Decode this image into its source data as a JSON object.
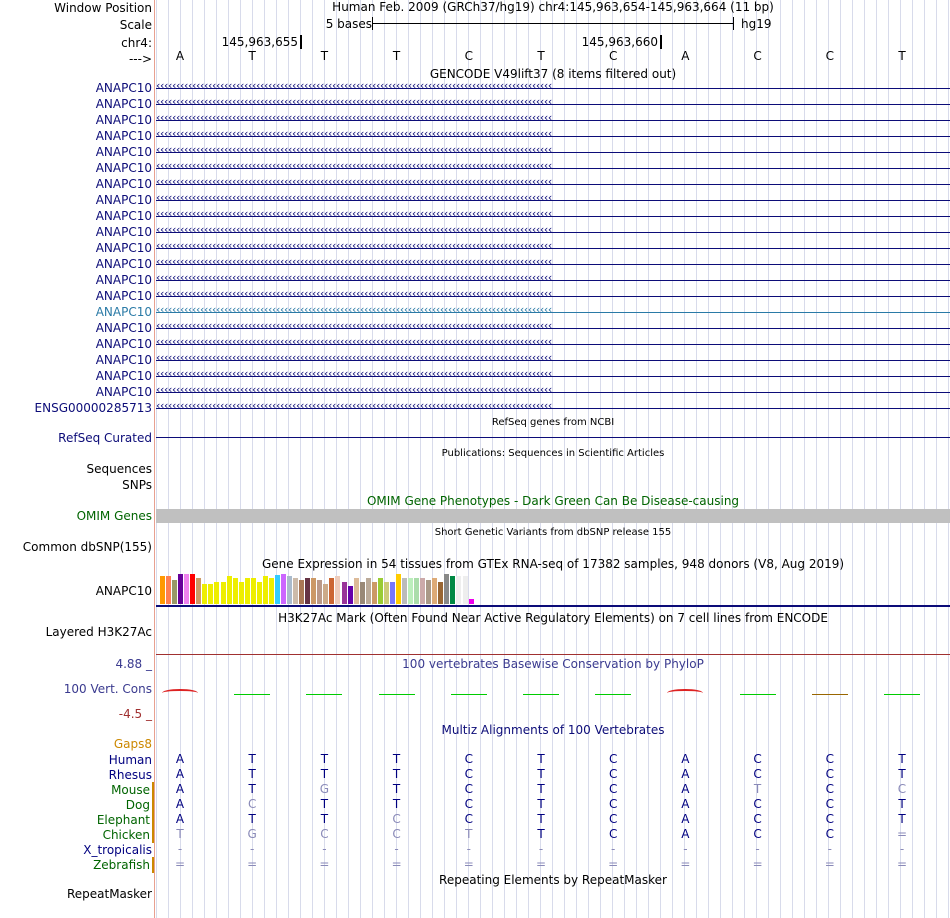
{
  "header": {
    "window_position_label": "Window Position",
    "scale_label": "Scale",
    "chr_label": "chr4:",
    "arrow_label": "--->",
    "assembly_text": "Human Feb. 2009 (GRCh37/hg19)   chr4:145,963,654-145,963,664 (11 bp)",
    "scale_text": "5 bases",
    "db_text": "hg19",
    "pos1": "145,963,655",
    "pos2": "145,963,660"
  },
  "sequence": [
    "A",
    "T",
    "T",
    "T",
    "C",
    "T",
    "C",
    "A",
    "C",
    "C",
    "T"
  ],
  "gencode": {
    "title": "GENCODE V49lift37 (8 items filtered out)",
    "genes": [
      "ANAPC10",
      "ANAPC10",
      "ANAPC10",
      "ANAPC10",
      "ANAPC10",
      "ANAPC10",
      "ANAPC10",
      "ANAPC10",
      "ANAPC10",
      "ANAPC10",
      "ANAPC10",
      "ANAPC10",
      "ANAPC10",
      "ANAPC10",
      "ANAPC10",
      "ANAPC10",
      "ANAPC10",
      "ANAPC10",
      "ANAPC10",
      "ANAPC10",
      "ENSG00000285713"
    ],
    "highlight_index": 14
  },
  "refseq": {
    "title": "RefSeq genes from NCBI",
    "label": "RefSeq Curated"
  },
  "publications": {
    "title": "Publications: Sequences in Scientific Articles",
    "label": "Sequences"
  },
  "snps": {
    "label": "SNPs"
  },
  "omim": {
    "title": "OMIM Gene Phenotypes - Dark Green Can Be Disease-causing",
    "label": "OMIM Genes"
  },
  "dbsnp": {
    "title": "Short Genetic Variants from dbSNP release 155",
    "label": "Common dbSNP(155)"
  },
  "gtex": {
    "title": "Gene Expression in 54 tissues from GTEx RNA-seq of 17382 samples, 948 donors (V8, Aug 2019)",
    "label": "ANAPC10",
    "bars": [
      {
        "v": 0.93,
        "c": "#ff9900"
      },
      {
        "v": 0.93,
        "c": "#ff7f50"
      },
      {
        "v": 0.79,
        "c": "#999966"
      },
      {
        "v": 1.0,
        "c": "#660099"
      },
      {
        "v": 1.0,
        "c": "#ee82ee"
      },
      {
        "v": 1.0,
        "c": "#ff0000"
      },
      {
        "v": 0.85,
        "c": "#cc9966"
      },
      {
        "v": 0.66,
        "c": "#eeee00"
      },
      {
        "v": 0.66,
        "c": "#eeee00"
      },
      {
        "v": 0.72,
        "c": "#eeee00"
      },
      {
        "v": 0.72,
        "c": "#eeee00"
      },
      {
        "v": 0.93,
        "c": "#eeee00"
      },
      {
        "v": 0.86,
        "c": "#eeee00"
      },
      {
        "v": 0.72,
        "c": "#eeee00"
      },
      {
        "v": 0.86,
        "c": "#eeee00"
      },
      {
        "v": 0.86,
        "c": "#eeee00"
      },
      {
        "v": 0.72,
        "c": "#eeee00"
      },
      {
        "v": 0.93,
        "c": "#eeee00"
      },
      {
        "v": 0.86,
        "c": "#eeee00"
      },
      {
        "v": 0.97,
        "c": "#33ccff"
      },
      {
        "v": 1.0,
        "c": "#cc66ff"
      },
      {
        "v": 0.93,
        "c": "#aabbcc"
      },
      {
        "v": 0.86,
        "c": "#ccbbaa"
      },
      {
        "v": 0.79,
        "c": "#aa7755"
      },
      {
        "v": 0.86,
        "c": "#663344"
      },
      {
        "v": 0.86,
        "c": "#cc9966"
      },
      {
        "v": 0.79,
        "c": "#bb9988"
      },
      {
        "v": 0.66,
        "c": "#ccaa88"
      },
      {
        "v": 0.86,
        "c": "#cc6633"
      },
      {
        "v": 0.93,
        "c": "#eeccbb"
      },
      {
        "v": 0.72,
        "c": "#993399"
      },
      {
        "v": 0.59,
        "c": "#6600aa"
      },
      {
        "v": 0.86,
        "c": "#ddbb99"
      },
      {
        "v": 0.72,
        "c": "#998877"
      },
      {
        "v": 0.86,
        "c": "#bbaa99"
      },
      {
        "v": 0.72,
        "c": "#cc9966"
      },
      {
        "v": 0.86,
        "c": "#99cc33"
      },
      {
        "v": 0.72,
        "c": "#cccc77"
      },
      {
        "v": 0.72,
        "c": "#7777ff"
      },
      {
        "v": 1.0,
        "c": "#ffcc00"
      },
      {
        "v": 0.86,
        "c": "#bbbbbb"
      },
      {
        "v": 0.86,
        "c": "#bbeebb"
      },
      {
        "v": 0.86,
        "c": "#aaddaa"
      },
      {
        "v": 0.86,
        "c": "#ccaaaa"
      },
      {
        "v": 0.79,
        "c": "#aa9988"
      },
      {
        "v": 0.86,
        "c": "#ddaa77"
      },
      {
        "v": 0.72,
        "c": "#996633"
      },
      {
        "v": 1.0,
        "c": "#888888"
      },
      {
        "v": 0.93,
        "c": "#008844"
      },
      {
        "v": 0.93,
        "c": "#eeeeee"
      },
      {
        "v": 0.93,
        "c": "#eeeeee"
      },
      {
        "v": 0.15,
        "c": "#ee00ee"
      }
    ]
  },
  "h3k27ac": {
    "title": "H3K27Ac Mark (Often Found Near Active Regulatory Elements) on 7 cell lines from ENCODE",
    "label": "Layered H3K27Ac"
  },
  "phylop": {
    "title": "100 vertebrates Basewise Conservation by PhyloP",
    "label": "100 Vert. Cons",
    "max_label": "4.88 _",
    "min_label": "-4.5 _",
    "range": [
      -4.5,
      4.88
    ],
    "scores": [
      0.9,
      0.2,
      0.15,
      0.0,
      0.1,
      0.3,
      0.0,
      0.9,
      0.0,
      0.1,
      0.5
    ],
    "colors": [
      "#cc0000",
      "#00cc00",
      "#00cc00",
      "#00cc00",
      "#00cc00",
      "#00cc00",
      "#00cc00",
      "#cc0000",
      "#00cc00",
      "#996600",
      "#00cc00"
    ]
  },
  "multiz": {
    "title": "Multiz Alignments of 100 Vertebrates",
    "gaps_label": "Gaps8",
    "species": [
      {
        "name": "Human",
        "color": "#000080",
        "bases": [
          "A",
          "T",
          "T",
          "T",
          "C",
          "T",
          "C",
          "A",
          "C",
          "C",
          "T"
        ],
        "dim": [
          false,
          false,
          false,
          false,
          false,
          false,
          false,
          false,
          false,
          false,
          false
        ]
      },
      {
        "name": "Rhesus",
        "color": "#000080",
        "bases": [
          "A",
          "T",
          "T",
          "T",
          "C",
          "T",
          "C",
          "A",
          "C",
          "C",
          "T"
        ],
        "dim": [
          false,
          false,
          false,
          false,
          false,
          false,
          false,
          false,
          false,
          false,
          false
        ]
      },
      {
        "name": "Mouse",
        "color": "#006400",
        "bases": [
          "A",
          "T",
          "G",
          "T",
          "C",
          "T",
          "C",
          "A",
          "T",
          "C",
          "C"
        ],
        "dim": [
          false,
          false,
          true,
          false,
          false,
          false,
          false,
          false,
          true,
          false,
          true
        ]
      },
      {
        "name": "Dog",
        "color": "#006400",
        "bases": [
          "A",
          "C",
          "T",
          "T",
          "C",
          "T",
          "C",
          "A",
          "C",
          "C",
          "T"
        ],
        "dim": [
          false,
          true,
          false,
          false,
          false,
          false,
          false,
          false,
          false,
          false,
          false
        ]
      },
      {
        "name": "Elephant",
        "color": "#006400",
        "bases": [
          "A",
          "T",
          "T",
          "C",
          "C",
          "T",
          "C",
          "A",
          "C",
          "C",
          "T"
        ],
        "dim": [
          false,
          false,
          false,
          true,
          false,
          false,
          false,
          false,
          false,
          false,
          false
        ]
      },
      {
        "name": "Chicken",
        "color": "#006400",
        "bases": [
          "T",
          "G",
          "C",
          "C",
          "T",
          "T",
          "C",
          "A",
          "C",
          "C",
          "="
        ],
        "dim": [
          true,
          true,
          true,
          true,
          true,
          false,
          false,
          false,
          false,
          false,
          true
        ]
      },
      {
        "name": "X_tropicalis",
        "color": "#000080",
        "bases": [
          "-",
          "-",
          "-",
          "-",
          "-",
          "-",
          "-",
          "-",
          "-",
          "-",
          "-"
        ],
        "dim": [
          true,
          true,
          true,
          true,
          true,
          true,
          true,
          true,
          true,
          true,
          true
        ]
      },
      {
        "name": "Zebrafish",
        "color": "#006400",
        "bases": [
          "=",
          "=",
          "=",
          "=",
          "=",
          "=",
          "=",
          "=",
          "=",
          "=",
          "="
        ],
        "dim": [
          true,
          true,
          true,
          true,
          true,
          true,
          true,
          true,
          true,
          true,
          true
        ]
      }
    ]
  },
  "repeatmasker": {
    "title": "Repeating Elements by RepeatMasker",
    "label": "RepeatMasker"
  },
  "colors": {
    "gene_navy": "#0c0c78",
    "gene_highlight": "#2a7aa6",
    "phylop_blue": "#3a3a8f",
    "phylop_red": "#a03030",
    "omim_label": "#006400",
    "omim_bar": "#c0c0c0",
    "gaps_orange": "#cc8800",
    "grid": "#d8dbeb"
  }
}
